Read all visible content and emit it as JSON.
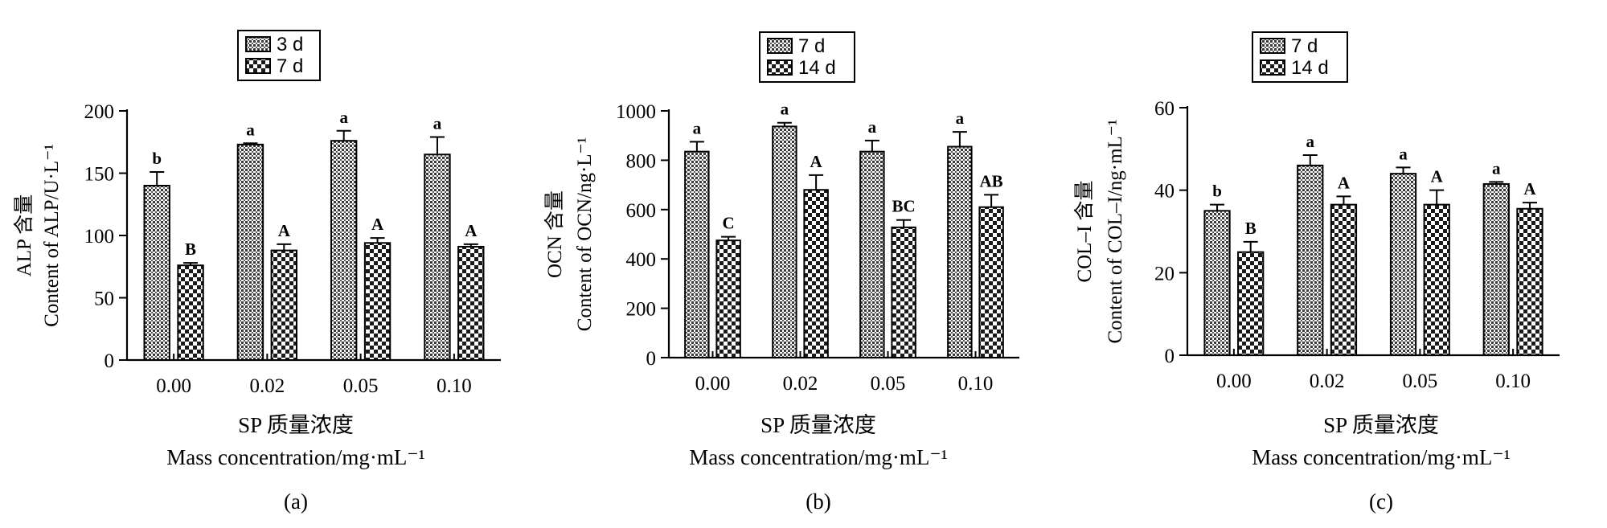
{
  "chart_data": [
    {
      "type": "bar",
      "panel_label": "(a)",
      "ylabel_cn": "ALP 含量",
      "ylabel_en": "Content of ALP/U·L⁻¹",
      "xlabel_cn": "SP 质量浓度",
      "xlabel_en": "Mass concentration/mg·mL⁻¹",
      "categories": [
        "0.00",
        "0.02",
        "0.05",
        "0.10"
      ],
      "ylim": [
        0,
        200
      ],
      "yticks": [
        0,
        50,
        100,
        150,
        200
      ],
      "series": [
        {
          "name": "3 d",
          "values": [
            140,
            173,
            176,
            165
          ],
          "errors": [
            11,
            1,
            8,
            14
          ],
          "letters": [
            "b",
            "a",
            "a",
            "a"
          ]
        },
        {
          "name": "7 d",
          "values": [
            76,
            88,
            94,
            91
          ],
          "errors": [
            2,
            5,
            4,
            2
          ],
          "letters": [
            "B",
            "A",
            "A",
            "A"
          ]
        }
      ]
    },
    {
      "type": "bar",
      "panel_label": "(b)",
      "ylabel_cn": "OCN 含量",
      "ylabel_en": "Content of OCN/ng·L⁻¹",
      "xlabel_cn": "SP 质量浓度",
      "xlabel_en": "Mass concentration/mg·mL⁻¹",
      "categories": [
        "0.00",
        "0.02",
        "0.05",
        "0.10"
      ],
      "ylim": [
        0,
        1000
      ],
      "yticks": [
        0,
        200,
        400,
        600,
        800,
        1000
      ],
      "series": [
        {
          "name": "7 d",
          "values": [
            835,
            937,
            835,
            855
          ],
          "errors": [
            40,
            15,
            45,
            60
          ],
          "letters": [
            "a",
            "a",
            "a",
            "a"
          ]
        },
        {
          "name": "14 d",
          "values": [
            475,
            680,
            528,
            610
          ],
          "errors": [
            15,
            60,
            30,
            50
          ],
          "letters": [
            "C",
            "A",
            "BC",
            "AB"
          ]
        }
      ]
    },
    {
      "type": "bar",
      "panel_label": "(c)",
      "ylabel_cn": "COL–I 含量",
      "ylabel_en": "Content of COL–I/ng·mL⁻¹",
      "xlabel_cn": "SP 质量浓度",
      "xlabel_en": "Mass concentration/mg·mL⁻¹",
      "categories": [
        "0.00",
        "0.02",
        "0.05",
        "0.10"
      ],
      "ylim": [
        0,
        60
      ],
      "yticks": [
        0,
        20,
        40,
        60
      ],
      "series": [
        {
          "name": "7 d",
          "values": [
            35,
            46,
            44,
            41.5
          ],
          "errors": [
            1.5,
            2.5,
            1.5,
            0.5
          ],
          "letters": [
            "b",
            "a",
            "a",
            "a"
          ]
        },
        {
          "name": "14 d",
          "values": [
            25,
            36.5,
            36.5,
            35.5
          ],
          "errors": [
            2.5,
            2,
            3.5,
            1.5
          ],
          "letters": [
            "B",
            "A",
            "A",
            "A"
          ]
        }
      ]
    }
  ]
}
